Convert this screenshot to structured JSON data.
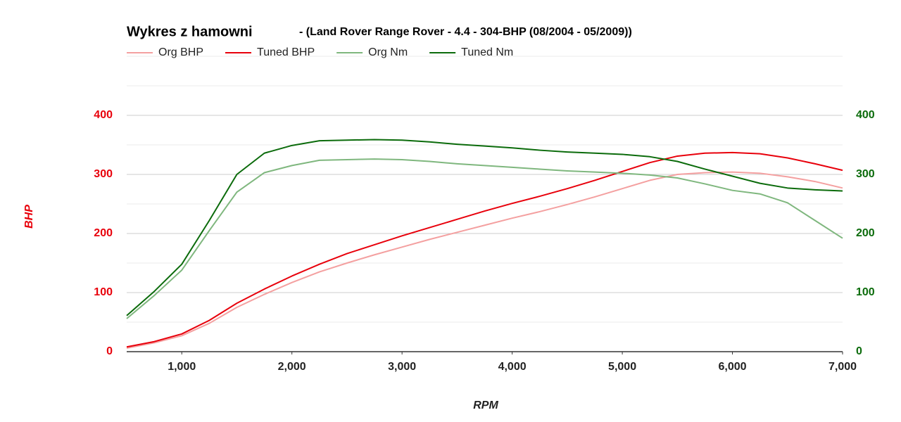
{
  "chart_data": {
    "type": "line",
    "title": "Wykres z hamowni",
    "subtitle": "- (Land Rover Range Rover - 4.4 - 304-BHP (08/2004 - 05/2009))",
    "x_label": "RPM",
    "y_label": "BHP",
    "x": [
      500,
      750,
      1000,
      1250,
      1500,
      1750,
      2000,
      2250,
      2500,
      2750,
      3000,
      3250,
      3500,
      3750,
      4000,
      4250,
      4500,
      4750,
      5000,
      5250,
      5500,
      5750,
      6000,
      6250,
      6500,
      6750,
      7000
    ],
    "series": [
      {
        "name": "Org BHP",
        "color": "#f4a0a0",
        "values": [
          6,
          15,
          27,
          48,
          75,
          97,
          117,
          135,
          150,
          164,
          177,
          190,
          202,
          214,
          226,
          237,
          249,
          262,
          276,
          290,
          300,
          303,
          304,
          302,
          296,
          288,
          277
        ]
      },
      {
        "name": "Tuned BHP",
        "color": "#e8000b",
        "values": [
          8,
          17,
          30,
          53,
          82,
          106,
          128,
          148,
          166,
          181,
          196,
          210,
          224,
          238,
          251,
          263,
          276,
          290,
          305,
          320,
          331,
          336,
          337,
          335,
          328,
          318,
          307
        ]
      },
      {
        "name": "Org Nm",
        "color": "#7fb77e",
        "axis": "y2",
        "values": [
          56,
          95,
          138,
          205,
          270,
          303,
          315,
          324,
          325,
          326,
          325,
          322,
          318,
          315,
          312,
          309,
          306,
          304,
          302,
          299,
          294,
          284,
          273,
          267,
          252,
          222,
          192
        ]
      },
      {
        "name": "Tuned Nm",
        "color": "#0b6b0b",
        "axis": "y2",
        "values": [
          61,
          102,
          148,
          222,
          300,
          336,
          349,
          357,
          358,
          359,
          358,
          355,
          351,
          348,
          345,
          341,
          338,
          336,
          334,
          330,
          322,
          309,
          297,
          285,
          277,
          274,
          272
        ]
      }
    ],
    "xlim": [
      500,
      7000
    ],
    "xticks": [
      {
        "value": 1000,
        "label": "1,000"
      },
      {
        "value": 2000,
        "label": "2,000"
      },
      {
        "value": 3000,
        "label": "3,000"
      },
      {
        "value": 4000,
        "label": "4,000"
      },
      {
        "value": 5000,
        "label": "5,000"
      },
      {
        "value": 6000,
        "label": "6,000"
      },
      {
        "value": 7000,
        "label": "7,000"
      }
    ],
    "ylim": [
      0,
      500
    ],
    "yticks": [
      0,
      100,
      200,
      300,
      400
    ],
    "y2lim": [
      0,
      500
    ],
    "y2ticks": [
      0,
      100,
      200,
      300,
      400
    ],
    "y_color": "#e8000b",
    "y2_color": "#0b6b0b",
    "grid": true,
    "legend": "top-left"
  }
}
